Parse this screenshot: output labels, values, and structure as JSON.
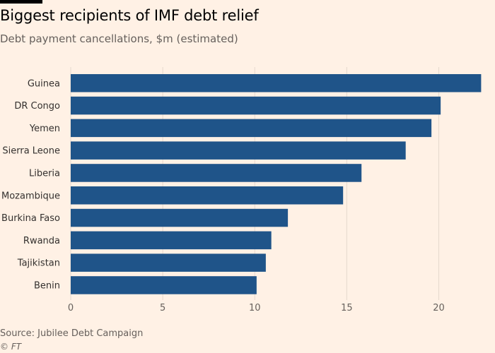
{
  "header": {
    "title": "Biggest recipients of IMF debt relief",
    "subtitle": "Debt payment cancellations, $m (estimated)"
  },
  "footer": {
    "source": "Source: Jubilee Debt Campaign",
    "credit": "© FT"
  },
  "colors": {
    "bar": "#1f5489",
    "grid": "#e6d9ce",
    "background": "#fff1e5"
  },
  "chart_data": {
    "type": "bar",
    "orientation": "horizontal",
    "title": "Biggest recipients of IMF debt relief",
    "subtitle": "Debt payment cancellations, $m (estimated)",
    "categories": [
      "Guinea",
      "DR Congo",
      "Yemen",
      "Sierra Leone",
      "Liberia",
      "Mozambique",
      "Burkina Faso",
      "Rwanda",
      "Tajikistan",
      "Benin"
    ],
    "values": [
      22.3,
      20.1,
      19.6,
      18.2,
      15.8,
      14.8,
      11.8,
      10.9,
      10.6,
      10.1
    ],
    "xlim": [
      0,
      22.4
    ],
    "xticks": [
      0,
      5,
      10,
      15,
      20
    ],
    "xtick_labels": [
      "0",
      "5",
      "10",
      "15",
      "20"
    ],
    "xlabel": "",
    "ylabel": "",
    "grid": true,
    "legend": false
  }
}
